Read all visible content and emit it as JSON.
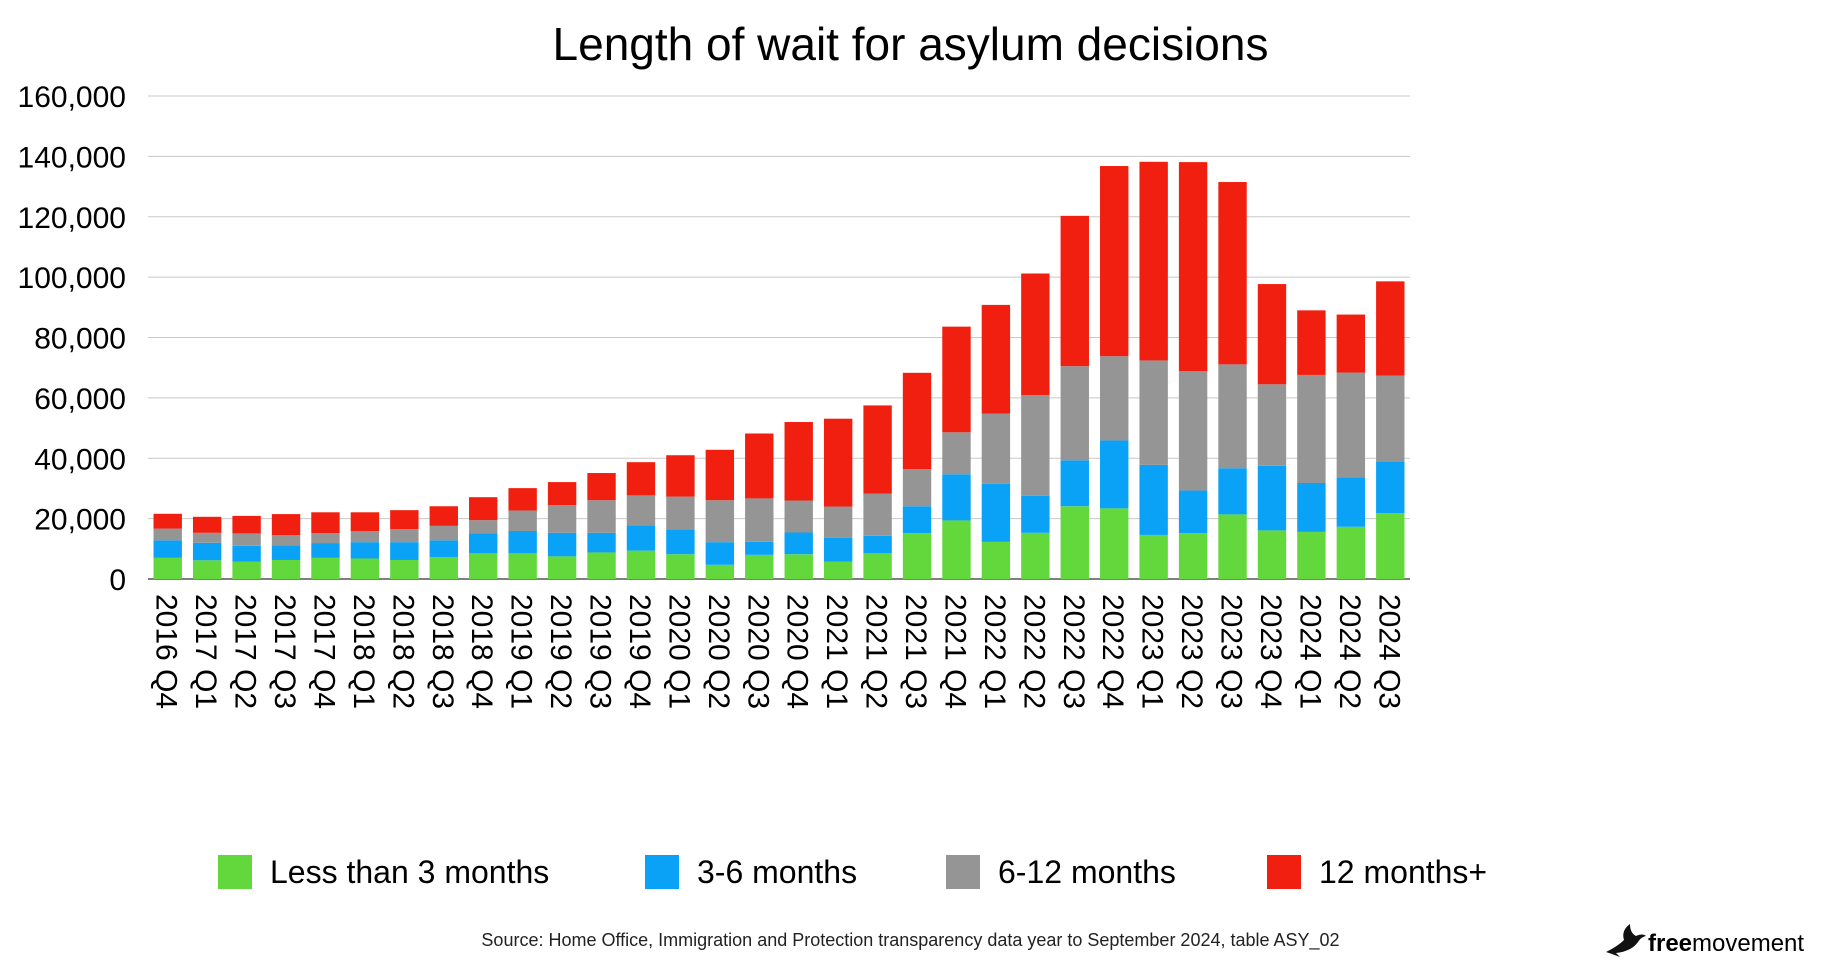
{
  "title": "Length of wait for asylum decisions",
  "source": "Source: Home Office, Immigration and Protection transparency data year to September 2024, table ASY_02",
  "brand": {
    "bold": "free",
    "regular": "movement",
    "icon": "bird-icon"
  },
  "colors": {
    "lt3": "#63d83c",
    "m3to6": "#0aa2f6",
    "m6to12": "#959595",
    "m12plus": "#f01f0f"
  },
  "chart_data": {
    "type": "bar",
    "stacked": true,
    "title": "Length of wait for asylum decisions",
    "ylim": [
      0,
      160000
    ],
    "yticks": [
      "0",
      "20,000",
      "40,000",
      "60,000",
      "80,000",
      "100,000",
      "120,000",
      "140,000",
      "160,000"
    ],
    "ytick_values": [
      0,
      20000,
      40000,
      60000,
      80000,
      100000,
      120000,
      140000,
      160000
    ],
    "grid": true,
    "legend_position": "bottom",
    "categories": [
      "2016 Q4",
      "2017 Q1",
      "2017 Q2",
      "2017 Q3",
      "2017 Q4",
      "2018 Q1",
      "2018 Q2",
      "2018 Q3",
      "2018 Q4",
      "2019 Q1",
      "2019 Q2",
      "2019 Q3",
      "2019 Q4",
      "2020 Q1",
      "2020 Q2",
      "2020 Q3",
      "2020 Q4",
      "2021 Q1",
      "2021 Q2",
      "2021 Q3",
      "2021 Q4",
      "2022 Q1",
      "2022 Q2",
      "2022 Q3",
      "2022 Q4",
      "2023 Q1",
      "2023 Q2",
      "2023 Q3",
      "2023 Q4",
      "2024 Q1",
      "2024 Q2",
      "2024 Q3"
    ],
    "series": [
      {
        "name": "Less than 3 months",
        "color": "#63d83c",
        "values": [
          7000,
          6200,
          5800,
          6300,
          7000,
          6800,
          6300,
          7300,
          8500,
          8500,
          7500,
          8800,
          9400,
          8200,
          4700,
          8000,
          8200,
          5800,
          8600,
          15200,
          19400,
          12300,
          15300,
          24100,
          23400,
          14600,
          15200,
          21400,
          16100,
          15600,
          17300,
          21800
        ]
      },
      {
        "name": "3-6 months",
        "color": "#0aa2f6",
        "values": [
          5800,
          5800,
          5200,
          4900,
          4900,
          5400,
          5900,
          5500,
          6600,
          7400,
          7800,
          6500,
          8300,
          8300,
          7500,
          4300,
          7200,
          7800,
          5700,
          8900,
          15300,
          19200,
          12300,
          15200,
          22500,
          23200,
          14100,
          15300,
          21400,
          16200,
          16300,
          17200
        ]
      },
      {
        "name": "6-12 months",
        "color": "#959595",
        "values": [
          3900,
          3300,
          4100,
          3300,
          3300,
          3700,
          4300,
          4800,
          4400,
          6800,
          9200,
          10800,
          10000,
          10800,
          13900,
          14400,
          10600,
          10400,
          14000,
          12300,
          13900,
          23300,
          33300,
          31200,
          27900,
          34600,
          39600,
          34400,
          27000,
          35800,
          34800,
          28400
        ]
      },
      {
        "name": "12 months+",
        "color": "#f01f0f",
        "values": [
          4900,
          5300,
          5800,
          7000,
          6900,
          6200,
          6300,
          6500,
          7600,
          7400,
          7600,
          9000,
          11000,
          13700,
          16700,
          21500,
          26000,
          29100,
          29200,
          31900,
          35000,
          36000,
          40300,
          49800,
          63000,
          65800,
          69200,
          60400,
          33200,
          21400,
          19200,
          31200
        ]
      }
    ]
  }
}
